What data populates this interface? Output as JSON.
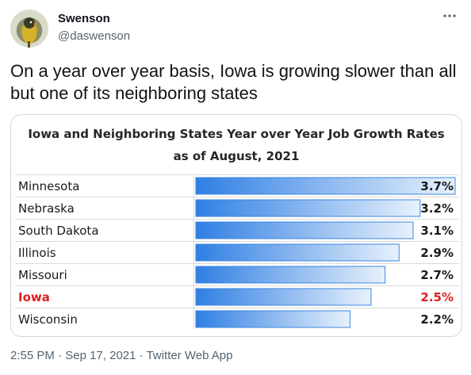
{
  "tweet": {
    "author_name": "Swenson",
    "author_handle": "@daswenson",
    "more_icon": "more-horizontal-icon",
    "text": "On a year over year basis, Iowa is growing slower than all but one of its neighboring states",
    "time": "2:55 PM",
    "separator": "·",
    "date": "Sep 17, 2021",
    "source": "Twitter Web App"
  },
  "colors": {
    "bar_start": "#2f7fe3",
    "bar_end": "#e8f1fc",
    "highlight": "#e02020",
    "text": "#0f1419",
    "muted": "#536471"
  },
  "chart_data": {
    "type": "bar",
    "orientation": "horizontal",
    "title_line1": "Iowa and Neighboring States Year over Year Job Growth Rates",
    "title_line2": "as of August, 2021",
    "categories": [
      "Minnesota",
      "Nebraska",
      "South Dakota",
      "Illinois",
      "Missouri",
      "Iowa",
      "Wisconsin"
    ],
    "values": [
      3.7,
      3.2,
      3.1,
      2.9,
      2.7,
      2.5,
      2.2
    ],
    "value_labels": [
      "3.7%",
      "3.2%",
      "3.1%",
      "2.9%",
      "2.7%",
      "2.5%",
      "2.2%"
    ],
    "highlight_category": "Iowa",
    "xlim": [
      0,
      3.7
    ],
    "grid": true
  }
}
